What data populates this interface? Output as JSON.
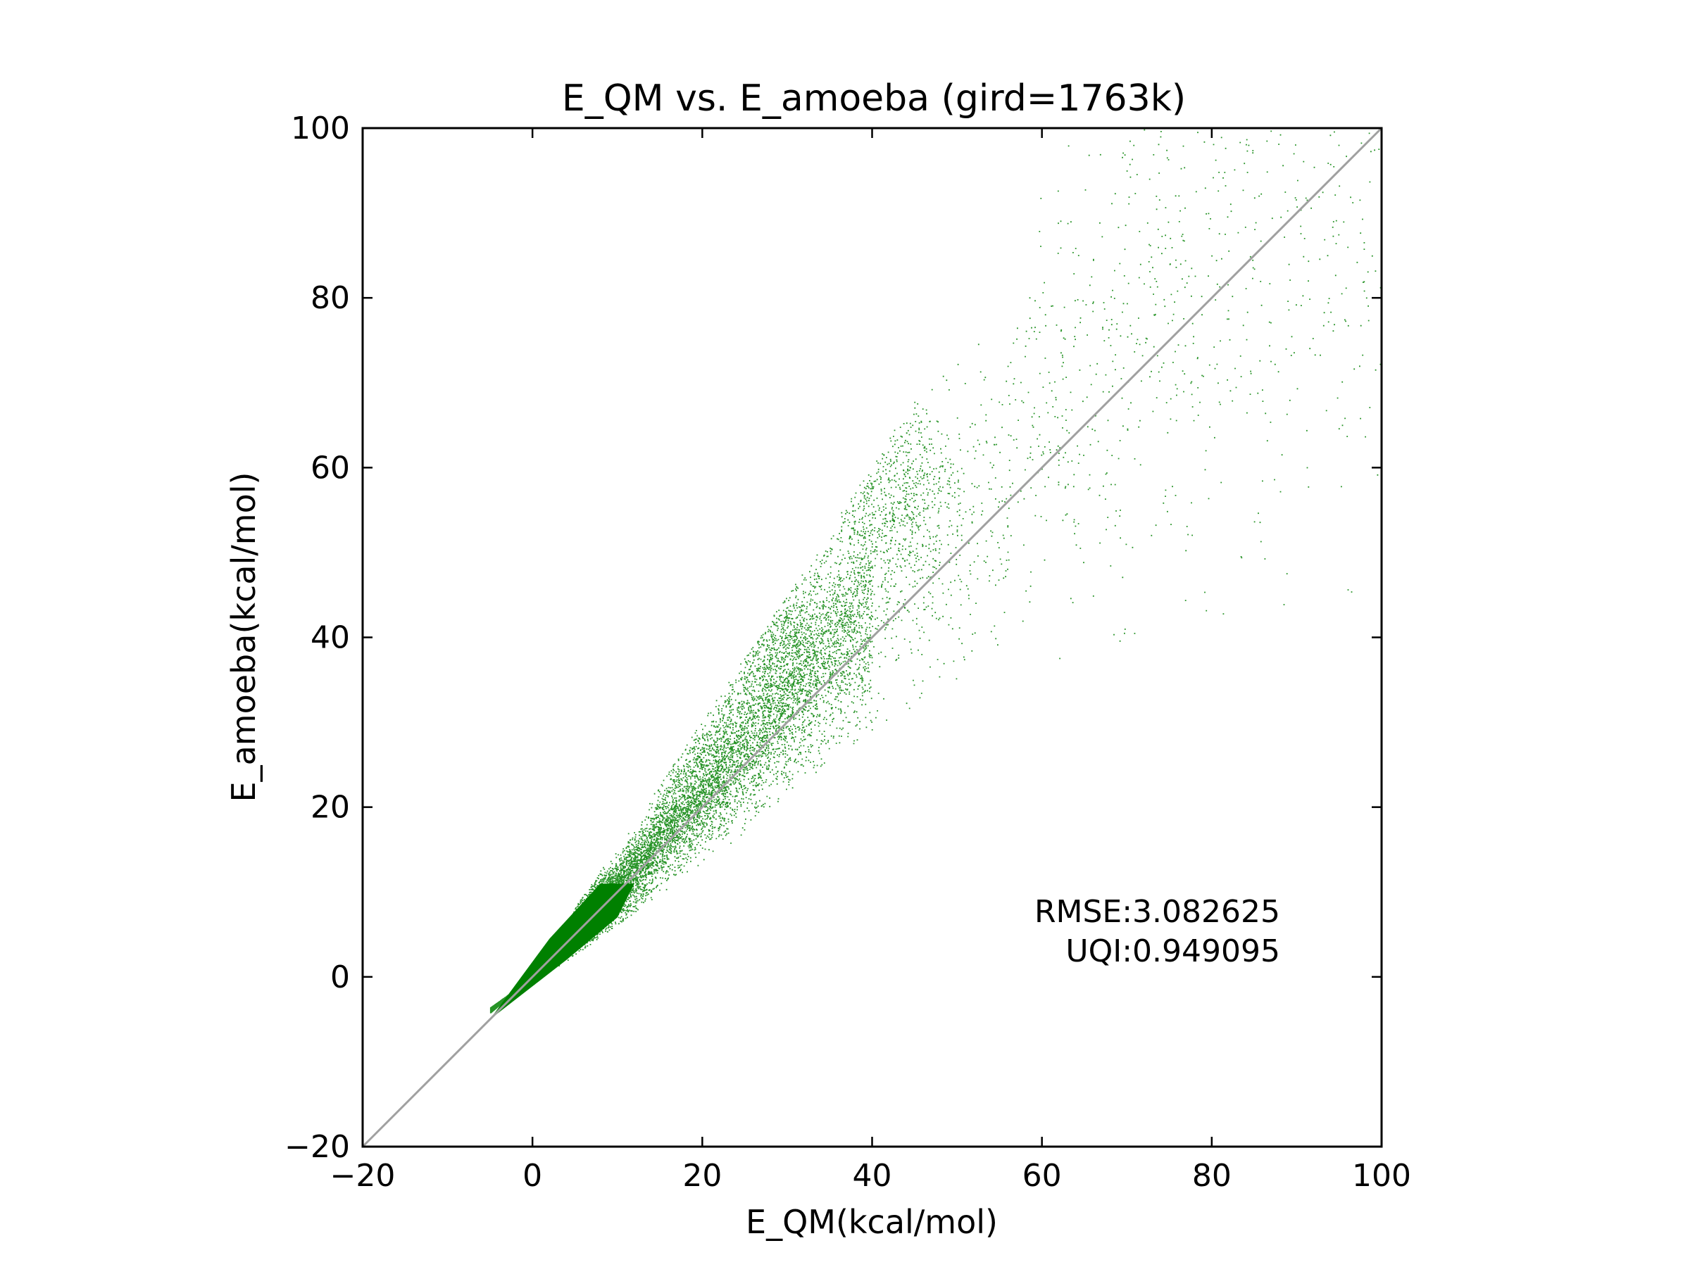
{
  "chart_data": {
    "type": "scatter",
    "title": "E_QM vs. E_amoeba (gird=1763k)",
    "xlabel": "E_QM(kcal/mol)",
    "ylabel": "E_amoeba(kcal/mol)",
    "xlim": [
      -20,
      100
    ],
    "ylim": [
      -20,
      100
    ],
    "xticks": [
      -20,
      0,
      20,
      40,
      60,
      80,
      100
    ],
    "yticks": [
      -20,
      0,
      20,
      40,
      60,
      80,
      100
    ],
    "xtick_labels": [
      "−20",
      "0",
      "20",
      "40",
      "60",
      "80",
      "100"
    ],
    "ytick_labels": [
      "−20",
      "0",
      "20",
      "40",
      "60",
      "80",
      "100"
    ],
    "grid": false,
    "legend": "none",
    "point_color": "#008000",
    "reference_line": {
      "from": [
        -20,
        -20
      ],
      "to": [
        100,
        100
      ],
      "color": "#a0a0a0"
    },
    "annotations": [
      "RMSE:3.082625",
      "UQI:0.949095"
    ],
    "density_clusters": [
      {
        "x_center": 5,
        "y_center": 5,
        "density": "very high"
      },
      {
        "x_center": 18,
        "y_center": 27,
        "density": "high"
      },
      {
        "x_center": 29,
        "y_center": 40,
        "density": "high"
      },
      {
        "x_center": 42,
        "y_center": 57,
        "density": "medium"
      }
    ],
    "approximate_extent": {
      "lower_left": [
        -5,
        -5
      ],
      "upper_envelope": [
        [
          -5,
          -5
        ],
        [
          10,
          17
        ],
        [
          20,
          34
        ],
        [
          30,
          47
        ],
        [
          40,
          64
        ],
        [
          50,
          84
        ],
        [
          60,
          96
        ],
        [
          70,
          100
        ]
      ],
      "lower_envelope": [
        [
          -5,
          -5
        ],
        [
          10,
          3
        ],
        [
          20,
          12
        ],
        [
          30,
          20
        ],
        [
          40,
          30
        ],
        [
          50,
          35
        ],
        [
          60,
          36
        ],
        [
          70,
          35
        ],
        [
          80,
          40
        ],
        [
          95,
          44
        ]
      ]
    }
  }
}
